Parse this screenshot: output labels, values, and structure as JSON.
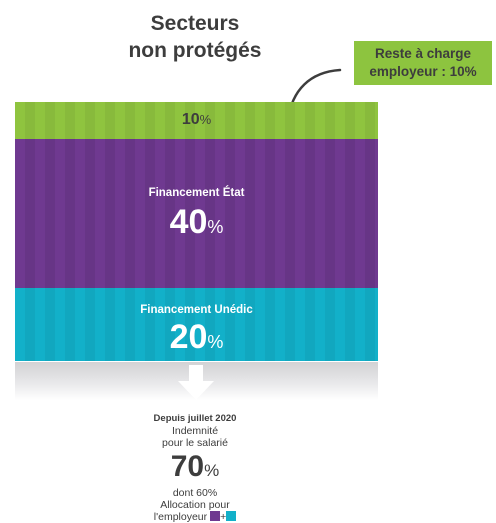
{
  "title": {
    "line1": "Secteurs",
    "line2": "non protégés"
  },
  "callout": {
    "line1": "Reste à charge",
    "line2": "employeur : 10%"
  },
  "segments": {
    "employeur": {
      "value": "10",
      "unit": "%"
    },
    "etat": {
      "label": "Financement État",
      "value": "40",
      "unit": "%"
    },
    "unedic": {
      "label": "Financement Unédic",
      "value": "20",
      "unit": "%"
    }
  },
  "bottom": {
    "since": "Depuis juillet 2020",
    "line1": "Indemnité",
    "line2": "pour le salarié",
    "value": "70",
    "unit": "%",
    "line3": "dont 60%",
    "line4": "Allocation pour",
    "line5": "l'employeur",
    "plus": "+"
  },
  "colors": {
    "green": "#8fc43f",
    "purple": "#6f3990",
    "cyan": "#12b0c9"
  }
}
